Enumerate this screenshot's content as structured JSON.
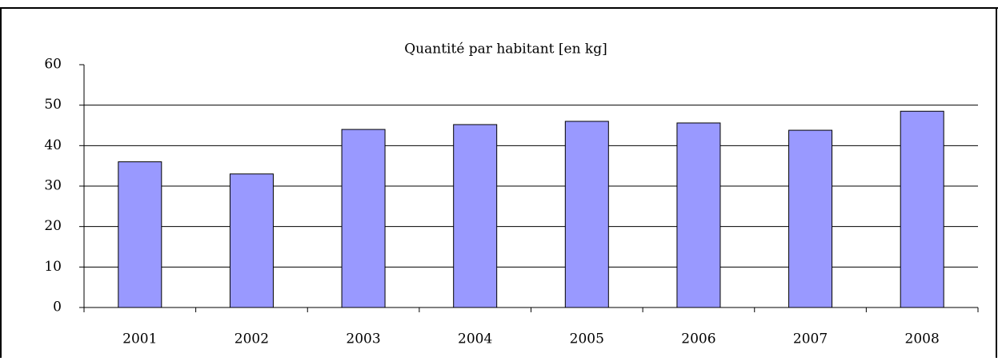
{
  "chart_data": {
    "type": "bar",
    "title": "Quantité par habitant [en kg]",
    "categories": [
      "2001",
      "2002",
      "2003",
      "2004",
      "2005",
      "2006",
      "2007",
      "2008"
    ],
    "values": [
      36,
      33,
      44,
      45.2,
      46,
      45.6,
      43.8,
      48.5
    ],
    "color": "#9999ff",
    "ylim": [
      0,
      60
    ],
    "yticks": [
      0,
      10,
      20,
      30,
      40,
      50,
      60
    ],
    "grid": true
  }
}
